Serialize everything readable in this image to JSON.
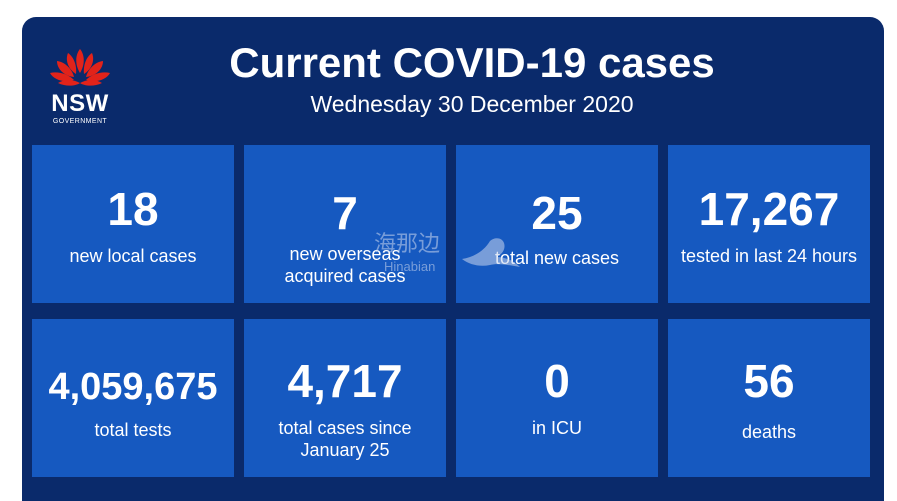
{
  "header": {
    "title": "Current COVID-19 cases",
    "date": "Wednesday 30 December 2020"
  },
  "logo": {
    "name": "NSW",
    "sub": "GOVERNMENT",
    "icon": "waratah-flower-icon",
    "color": "#e2231a"
  },
  "stats": [
    {
      "value": "18",
      "label": "new local cases"
    },
    {
      "value": "7",
      "label": "new overseas acquired cases"
    },
    {
      "value": "25",
      "label": "total new cases"
    },
    {
      "value": "17,267",
      "label": "tested in last 24 hours"
    },
    {
      "value": "4,059,675",
      "label": "total tests"
    },
    {
      "value": "4,717",
      "label": "total cases since January 25"
    },
    {
      "value": "0",
      "label": "in ICU"
    },
    {
      "value": "56",
      "label": "deaths"
    }
  ],
  "watermark": {
    "cn": "海那边",
    "en": "Hinabian"
  },
  "colors": {
    "background": "#0a2a6b",
    "tile": "#1659c0",
    "text": "#ffffff"
  }
}
